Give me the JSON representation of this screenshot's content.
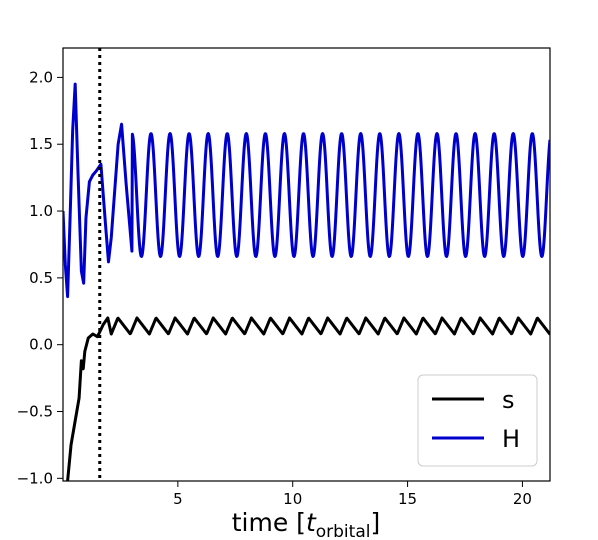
{
  "chart_data": {
    "type": "line",
    "xlabel_main": "time [",
    "xlabel_italic": "t",
    "xlabel_sub": "orbital",
    "xlabel_close": "]",
    "ylabel": "",
    "xlim": [
      0,
      21.2
    ],
    "ylim": [
      -1.02,
      2.22
    ],
    "x_ticks": [
      5,
      10,
      15,
      20
    ],
    "x_tick_labels": [
      "5",
      "10",
      "15",
      "20"
    ],
    "y_ticks": [
      -1.0,
      -0.5,
      0.0,
      0.5,
      1.0,
      1.5,
      2.0
    ],
    "y_tick_labels": [
      "−1.0",
      "−0.5",
      "0.0",
      "0.5",
      "1.0",
      "1.5",
      "2.0"
    ],
    "vline": {
      "x": 1.6,
      "style": "dotted",
      "color": "#000000"
    },
    "legend_position": "bottom-right",
    "grid": false,
    "series": [
      {
        "name": "s",
        "color": "#000000",
        "transient": [
          [
            0.2,
            -1.02
          ],
          [
            0.35,
            -0.75
          ],
          [
            0.55,
            -0.55
          ],
          [
            0.7,
            -0.4
          ],
          [
            0.8,
            -0.12
          ],
          [
            0.88,
            -0.18
          ],
          [
            0.95,
            -0.05
          ],
          [
            1.1,
            0.05
          ],
          [
            1.3,
            0.08
          ],
          [
            1.5,
            0.06
          ],
          [
            1.75,
            0.15
          ],
          [
            1.95,
            0.2
          ],
          [
            2.1,
            0.08
          ]
        ],
        "start": 2.1,
        "end": 21.2,
        "period": 0.83,
        "min": 0.08,
        "max": 0.2
      },
      {
        "name": "H",
        "color": "#0000cc",
        "transient": [
          [
            0,
            1.0
          ],
          [
            0.1,
            0.6
          ],
          [
            0.2,
            0.36
          ],
          [
            0.3,
            0.9
          ],
          [
            0.42,
            1.6
          ],
          [
            0.53,
            1.95
          ],
          [
            0.65,
            1.3
          ],
          [
            0.8,
            0.55
          ],
          [
            0.9,
            0.46
          ],
          [
            1.0,
            0.95
          ],
          [
            1.15,
            1.22
          ],
          [
            1.3,
            1.27
          ],
          [
            1.45,
            1.3
          ],
          [
            1.65,
            1.35
          ],
          [
            1.85,
            0.9
          ],
          [
            1.98,
            0.62
          ],
          [
            2.1,
            0.8
          ],
          [
            2.4,
            1.5
          ],
          [
            2.55,
            1.65
          ],
          [
            2.75,
            1.2
          ],
          [
            3.0,
            0.7
          ]
        ],
        "start": 3.0,
        "end": 21.2,
        "period": 0.83,
        "min": 0.66,
        "max": 1.58
      }
    ]
  }
}
